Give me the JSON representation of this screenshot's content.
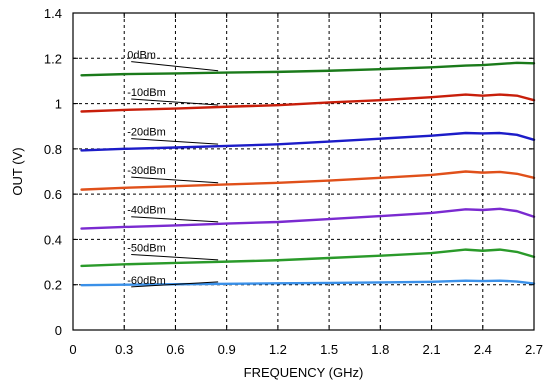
{
  "chart_data": {
    "type": "line",
    "xlabel": "FREQUENCY (GHz)",
    "ylabel": "OUT (V)",
    "xlim": [
      0,
      2.7
    ],
    "ylim": [
      0,
      1.4
    ],
    "xticks": [
      0,
      0.3,
      0.6,
      0.9,
      1.2,
      1.5,
      1.8,
      2.1,
      2.4,
      2.7
    ],
    "xtick_labels": [
      "0",
      "0.3",
      "0.6",
      "0.9",
      "1.2",
      "1.5",
      "1.8",
      "2.1",
      "2.4",
      "2.7"
    ],
    "yticks": [
      0,
      0.2,
      0.4,
      0.6,
      0.8,
      1.0,
      1.2,
      1.4
    ],
    "ytick_labels": [
      "0",
      "0.2",
      "0.4",
      "0.6",
      "0.8",
      "1",
      "1.2",
      "1.4"
    ],
    "grid": true,
    "grid_style": "dashed",
    "x": [
      0.05,
      0.3,
      0.6,
      0.9,
      1.2,
      1.5,
      1.8,
      2.1,
      2.3,
      2.4,
      2.5,
      2.6,
      2.7
    ],
    "series": [
      {
        "name": "0dBm",
        "color": "#1a7a1a",
        "values": [
          1.125,
          1.13,
          1.133,
          1.137,
          1.14,
          1.145,
          1.152,
          1.16,
          1.168,
          1.17,
          1.175,
          1.18,
          1.178
        ]
      },
      {
        "name": "-10dBm",
        "color": "#c81e0a",
        "values": [
          0.965,
          0.972,
          0.978,
          0.986,
          0.993,
          1.005,
          1.015,
          1.028,
          1.04,
          1.035,
          1.04,
          1.035,
          1.015
        ]
      },
      {
        "name": "-20dBm",
        "color": "#1c1cc8",
        "values": [
          0.793,
          0.8,
          0.806,
          0.813,
          0.82,
          0.832,
          0.845,
          0.858,
          0.87,
          0.868,
          0.87,
          0.862,
          0.84
        ]
      },
      {
        "name": "-30dBm",
        "color": "#e0501a",
        "values": [
          0.62,
          0.628,
          0.635,
          0.643,
          0.65,
          0.66,
          0.672,
          0.685,
          0.7,
          0.695,
          0.698,
          0.69,
          0.672
        ]
      },
      {
        "name": "-40dBm",
        "color": "#7a2ad0",
        "values": [
          0.448,
          0.455,
          0.462,
          0.47,
          0.477,
          0.49,
          0.503,
          0.517,
          0.533,
          0.53,
          0.535,
          0.525,
          0.5
        ]
      },
      {
        "name": "-50dBm",
        "color": "#2a9a2a",
        "values": [
          0.283,
          0.29,
          0.296,
          0.302,
          0.308,
          0.318,
          0.328,
          0.34,
          0.355,
          0.35,
          0.355,
          0.345,
          0.323
        ]
      },
      {
        "name": "-60dBm",
        "color": "#3a90e8",
        "values": [
          0.198,
          0.2,
          0.202,
          0.204,
          0.206,
          0.208,
          0.21,
          0.213,
          0.218,
          0.216,
          0.218,
          0.214,
          0.205
        ]
      }
    ],
    "annotations": [
      {
        "text": "0dBm",
        "series": "0dBm",
        "x": 0.85,
        "y": 1.15
      },
      {
        "text": "-10dBm",
        "series": "-10dBm",
        "x": 0.85,
        "y": 0.985
      },
      {
        "text": "-20dBm",
        "series": "-20dBm",
        "x": 0.85,
        "y": 0.81
      },
      {
        "text": "-30dBm",
        "series": "-30dBm",
        "x": 0.85,
        "y": 0.64
      },
      {
        "text": "-40dBm",
        "series": "-40dBm",
        "x": 0.85,
        "y": 0.465
      },
      {
        "text": "-50dBm",
        "series": "-50dBm",
        "x": 0.85,
        "y": 0.298
      },
      {
        "text": "-60dBm",
        "series": "-60dBm",
        "x": 0.85,
        "y": 0.155
      }
    ]
  }
}
